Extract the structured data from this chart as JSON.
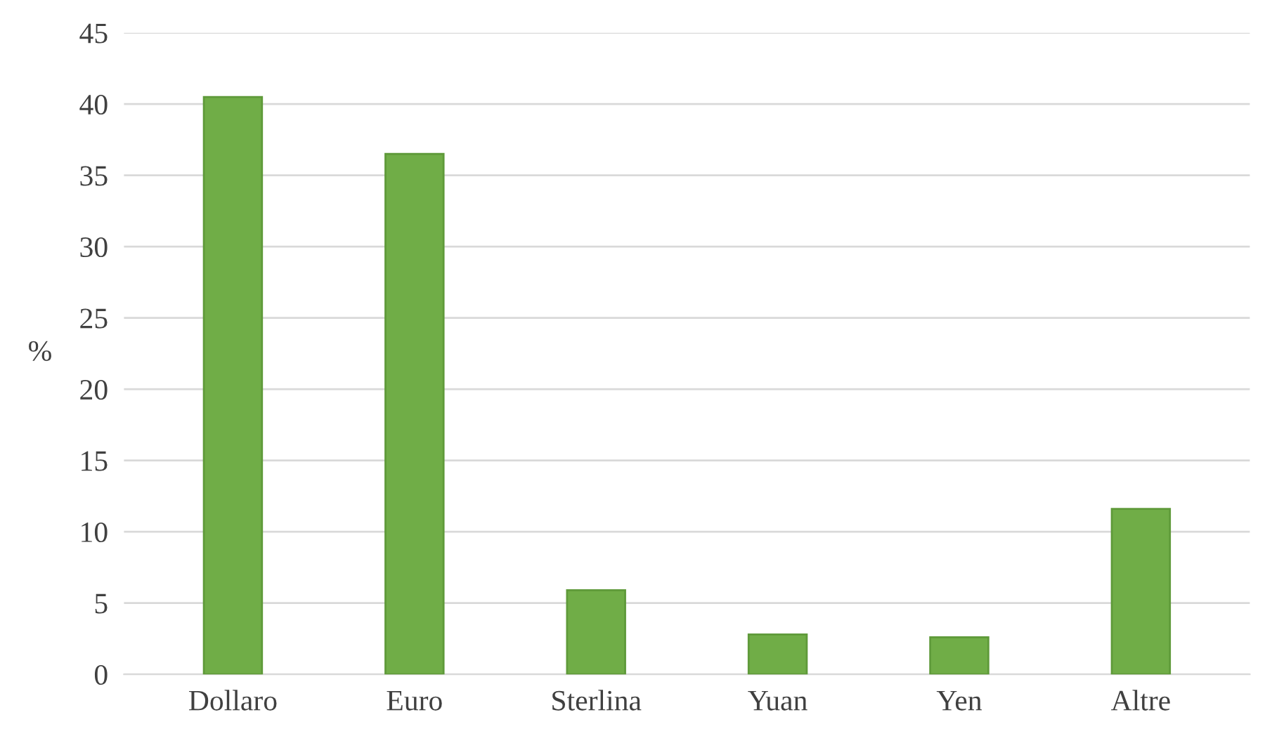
{
  "chart_data": {
    "type": "bar",
    "ylabel": "%",
    "categories": [
      "Dollaro",
      "Euro",
      "Sterlina",
      "Yuan",
      "Yen",
      "Altre"
    ],
    "values": [
      40.5,
      36.5,
      5.9,
      2.8,
      2.6,
      11.6
    ],
    "color": "#70ad47",
    "ylim": [
      0,
      45
    ],
    "yticks": [
      0,
      5,
      10,
      15,
      20,
      25,
      30,
      35,
      40,
      45
    ],
    "grid": "y"
  }
}
